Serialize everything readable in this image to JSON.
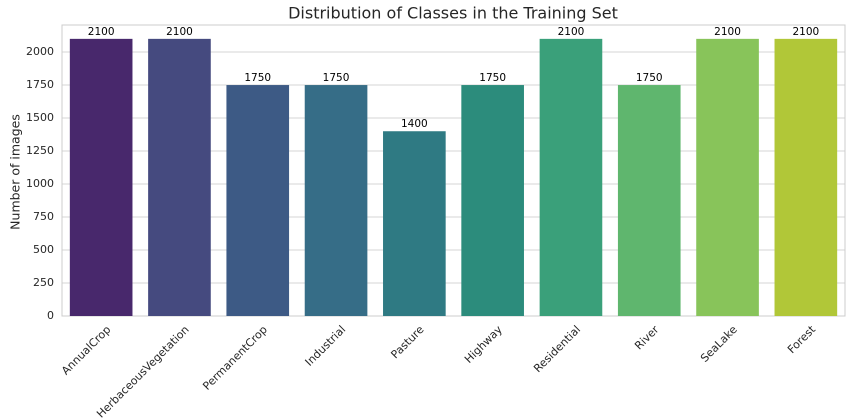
{
  "chart_data": {
    "type": "bar",
    "title": "Distribution of Classes in the Training Set",
    "ylabel": "Number of images",
    "categories": [
      "AnnualCrop",
      "HerbaceousVegetation",
      "PermanentCrop",
      "Industrial",
      "Pasture",
      "Highway",
      "Residential",
      "River",
      "SeaLake",
      "Forest"
    ],
    "values": [
      2100,
      2100,
      1750,
      1750,
      1400,
      1750,
      2100,
      1750,
      2100,
      2100
    ],
    "colors": [
      "#48286c",
      "#454a7f",
      "#3d5a85",
      "#366d87",
      "#2f7a83",
      "#2c8c7c",
      "#3aa07a",
      "#5fb66e",
      "#88c45a",
      "#b1c738"
    ],
    "ylim": [
      0,
      2205
    ],
    "yticks": [
      0,
      250,
      500,
      750,
      1000,
      1250,
      1500,
      1750,
      2000
    ],
    "grid": true
  }
}
